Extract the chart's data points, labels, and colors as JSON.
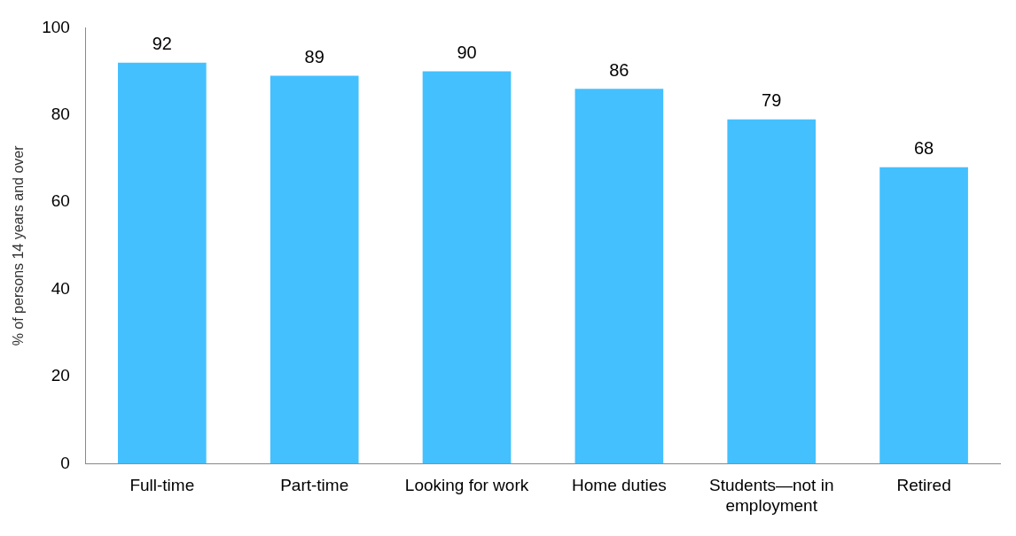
{
  "chart_data": {
    "type": "bar",
    "ylabel": "% of persons 14 years and over",
    "categories": [
      "Full-time",
      "Part-time",
      "Looking for work",
      "Home duties",
      "Students—not in employment",
      "Retired"
    ],
    "values": [
      92,
      89,
      90,
      86,
      79,
      68
    ],
    "color": "#44c0ff",
    "ylim": [
      0,
      100
    ],
    "yticks": [
      0,
      20,
      40,
      60,
      80,
      100
    ],
    "grid": false,
    "legend": false,
    "data_labels": true
  }
}
